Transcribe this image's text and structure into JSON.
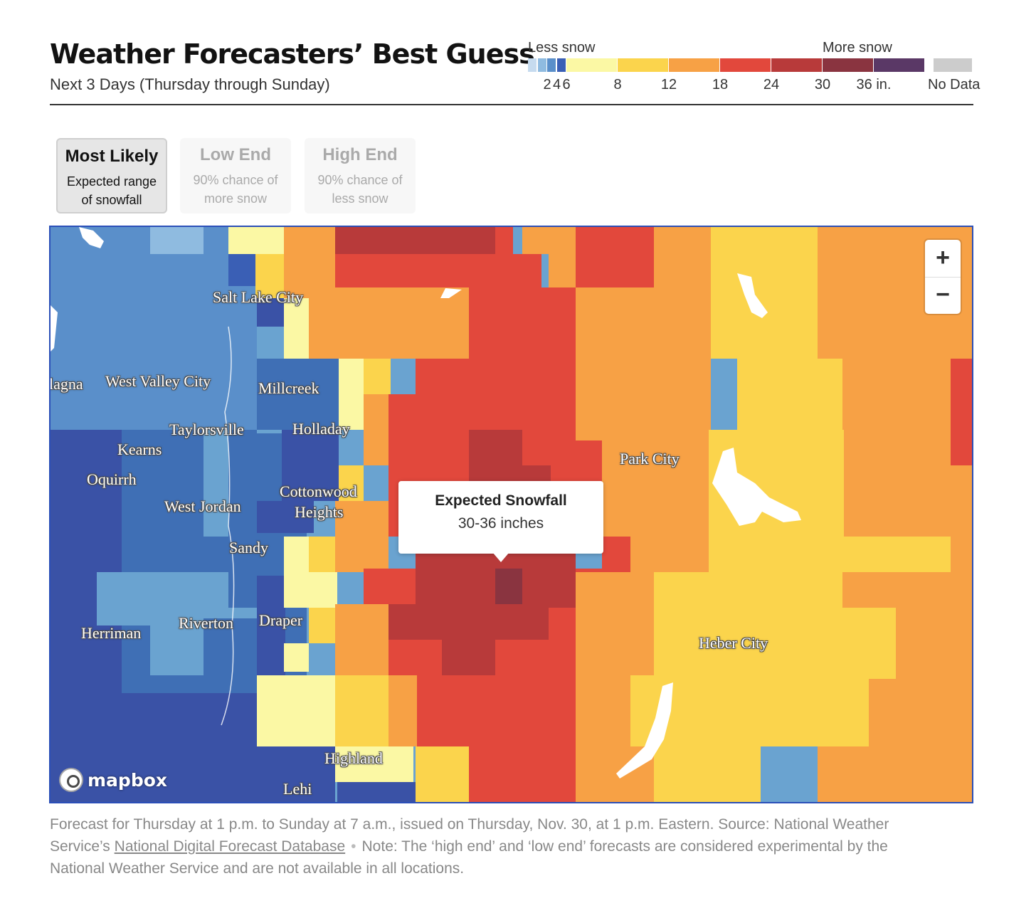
{
  "header": {
    "title": "Weather Forecasters’ Best Guess",
    "subtitle": "Next 3 Days (Thursday through Sunday)"
  },
  "legend": {
    "less_label": "Less snow",
    "more_label": "More snow",
    "bins": [
      {
        "color": "#c6dbef",
        "tick": ""
      },
      {
        "color": "#8fbbe0",
        "tick": "2"
      },
      {
        "color": "#5a8fca",
        "tick": "4"
      },
      {
        "color": "#3a5fb5",
        "tick": "6"
      },
      {
        "color": "#fbf8a4",
        "tick": "8"
      },
      {
        "color": "#fbd44c",
        "tick": "12"
      },
      {
        "color": "#f7a145",
        "tick": "18"
      },
      {
        "color": "#e2483c",
        "tick": "24"
      },
      {
        "color": "#b83a3a",
        "tick": "30"
      },
      {
        "color": "#8a3440",
        "tick": "36 in."
      },
      {
        "color": "#5a3866",
        "tick": ""
      }
    ],
    "no_data_label": "No Data",
    "no_data_color": "#cccccc"
  },
  "tabs": [
    {
      "title": "Most Likely",
      "desc": "Expected range of snowfall",
      "selected": true
    },
    {
      "title": "Low End",
      "desc": "90% chance of more snow",
      "selected": false
    },
    {
      "title": "High End",
      "desc": "90% chance of less snow",
      "selected": false
    }
  ],
  "map": {
    "places": [
      "Salt Lake City",
      "lagna",
      "West Valley City",
      "Millcreek",
      "Taylorsville",
      "Holladay",
      "Kearns",
      "Oquirrh",
      "Cottonwood",
      "Heights",
      "West Jordan",
      "Sandy",
      "Park City",
      "Draper",
      "Riverton",
      "Herriman",
      "Heber City",
      "Highland",
      "Lehi"
    ],
    "zoom_in": "+",
    "zoom_out": "−",
    "tooltip": {
      "title": "Expected Snowfall",
      "value": "30-36 inches"
    },
    "attribution": "mapbox"
  },
  "footnote": {
    "text_1": "Forecast for Thursday at 1 p.m. to Sunday at 7 a.m., issued on Thursday, Nov. 30, at 1 p.m. Eastern. Source: National Weather Service’s ",
    "link": "National Digital Forecast Database",
    "bullet": "•",
    "text_2": "Note: The ‘high end’ and ‘low end’ forecasts are considered experimental by the National Weather Service and are not available in all locations."
  }
}
